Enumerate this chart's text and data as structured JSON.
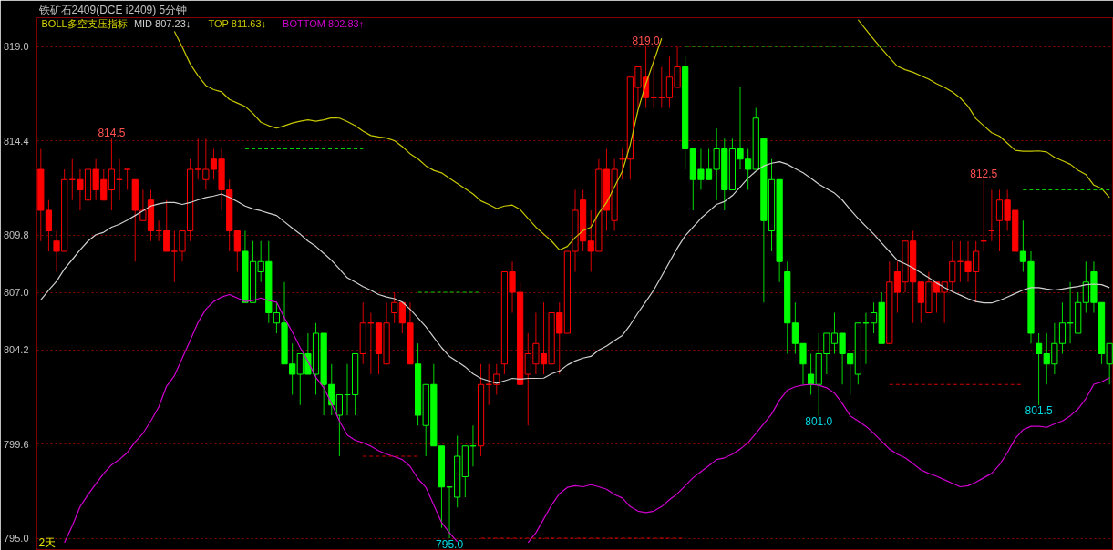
{
  "chart_data": {
    "type": "candlestick",
    "title": "铁矿石2409(DCE i2409)  5分钟",
    "legend_title": "BOLL多空支压指标",
    "legend": "top left",
    "grid": "y",
    "tick_labels": "y",
    "ylim": [
      794.4,
      820.4
    ],
    "yticks": [
      {
        "value": 795,
        "label": "795.0"
      },
      799.6,
      804.2,
      {
        "value": 807,
        "label": "807.0"
      },
      809.8,
      814.4,
      {
        "value": 819,
        "label": "819.0"
      }
    ],
    "categories": [
      null,
      null,
      null,
      null,
      null,
      null,
      null,
      null,
      null,
      null,
      null,
      null,
      null,
      null,
      null,
      null,
      null,
      null,
      null,
      null,
      null,
      null,
      null,
      null,
      null,
      null,
      null,
      null,
      null,
      null,
      null,
      null,
      null,
      null,
      null,
      null,
      null,
      null,
      null,
      null,
      null,
      null,
      null,
      null,
      null,
      null,
      null,
      null,
      null,
      null,
      null,
      null,
      null,
      null,
      null,
      null,
      null,
      null,
      null,
      null,
      null,
      null,
      null,
      null,
      null,
      null,
      null,
      null,
      null,
      null,
      null,
      null,
      null,
      null,
      null,
      null,
      null,
      null,
      null,
      null,
      null,
      null,
      null,
      null,
      null,
      null,
      null,
      null,
      null,
      null,
      null,
      null,
      null,
      null,
      null,
      null,
      null,
      null,
      null,
      null,
      null,
      null,
      null,
      null,
      null,
      null,
      null,
      null,
      null,
      null,
      null,
      null,
      null,
      null,
      null,
      null,
      null,
      null,
      null,
      null,
      null,
      null,
      null,
      null,
      null,
      null,
      null,
      null,
      null,
      null,
      null,
      null,
      null,
      null,
      null,
      null,
      null
    ],
    "ohlc": [
      [
        813,
        814,
        809.5,
        811
      ],
      [
        811,
        811.5,
        809,
        810
      ],
      [
        809.5,
        810,
        808,
        809
      ],
      [
        809,
        813,
        809,
        812.5
      ],
      [
        812.5,
        813.5,
        811.5,
        812.5
      ],
      [
        812.5,
        813,
        811,
        812
      ],
      [
        811.5,
        813,
        811.5,
        813
      ],
      [
        813,
        813.5,
        811.5,
        812
      ],
      [
        812.5,
        813,
        811.5,
        811.5
      ],
      [
        812,
        814.5,
        811,
        813
      ],
      [
        812.5,
        813.5,
        811.5,
        812.5
      ],
      [
        813,
        813,
        812,
        813
      ],
      [
        812.5,
        812.5,
        808.5,
        811
      ],
      [
        810.5,
        812,
        810.5,
        811
      ],
      [
        811.5,
        812,
        809.5,
        810
      ],
      [
        810,
        810.5,
        809.5,
        810
      ],
      [
        810,
        811.5,
        809,
        809
      ],
      [
        809,
        810,
        807.5,
        809
      ],
      [
        809,
        810,
        808.5,
        810
      ],
      [
        810,
        813.5,
        809.5,
        813
      ],
      [
        813,
        814.5,
        812.5,
        813
      ],
      [
        812.5,
        814.5,
        812,
        813
      ],
      [
        813.5,
        814,
        812.5,
        813
      ],
      [
        813.5,
        814,
        811,
        812
      ],
      [
        812,
        812.5,
        809,
        810
      ],
      [
        810,
        810,
        808,
        809
      ],
      [
        809,
        810,
        806.5,
        806.5
      ],
      [
        806.5,
        809.5,
        806.5,
        808.5
      ],
      [
        808,
        809.5,
        807.5,
        808.5
      ],
      [
        808.5,
        809.5,
        805.5,
        806
      ],
      [
        805.5,
        806.5,
        805,
        806
      ],
      [
        805.5,
        807.5,
        803.5,
        803.5
      ],
      [
        803.5,
        804.5,
        802,
        803
      ],
      [
        803,
        804,
        801.5,
        804
      ],
      [
        804,
        805,
        803,
        803
      ],
      [
        803,
        805.5,
        802,
        805
      ],
      [
        805,
        805,
        801,
        802.5
      ],
      [
        802.5,
        803.5,
        801,
        801.5
      ],
      [
        801,
        802,
        799,
        802
      ],
      [
        802,
        803.5,
        801,
        802
      ],
      [
        802,
        804,
        801,
        804
      ],
      [
        804,
        806.5,
        803.5,
        805.5
      ],
      [
        805.5,
        806,
        803,
        805.5
      ],
      [
        805.5,
        805.5,
        803,
        804
      ],
      [
        803.5,
        806.5,
        803.5,
        805.5
      ],
      [
        806,
        807,
        805.5,
        806.5
      ],
      [
        806.5,
        806.5,
        805,
        805.5
      ],
      [
        805.5,
        806.5,
        803.5,
        803.5
      ],
      [
        803.5,
        804.5,
        800.5,
        801
      ],
      [
        800.5,
        802.5,
        799,
        802.5
      ],
      [
        802.5,
        803.5,
        799.5,
        799.5
      ],
      [
        799.5,
        799.5,
        795.5,
        797.5
      ],
      [
        797.5,
        797.5,
        795,
        797.5
      ],
      [
        797,
        800,
        796.5,
        799
      ],
      [
        798,
        799.5,
        797,
        799.5
      ],
      [
        799.5,
        800.5,
        798.5,
        799.5
      ],
      [
        799.5,
        803.5,
        799,
        802.5
      ],
      [
        802.5,
        803.5,
        801.5,
        802.5
      ],
      [
        802.5,
        803.5,
        802,
        803
      ],
      [
        803.5,
        808,
        803,
        808
      ],
      [
        808,
        808.5,
        806,
        807
      ],
      [
        807,
        807.5,
        802.5,
        802.5
      ],
      [
        803,
        805,
        800.5,
        804
      ],
      [
        803.5,
        806,
        803,
        804.5
      ],
      [
        804,
        806.5,
        803,
        803.5
      ],
      [
        803.5,
        806,
        803.5,
        806
      ],
      [
        806,
        806.5,
        803,
        805
      ],
      [
        805,
        809,
        805,
        809
      ],
      [
        809,
        812,
        808,
        811
      ],
      [
        811.5,
        812,
        809,
        809.5
      ],
      [
        809.5,
        811,
        808,
        809
      ],
      [
        809,
        813.5,
        809,
        813
      ],
      [
        813,
        814,
        810,
        811
      ],
      [
        810.5,
        813.5,
        810,
        813
      ],
      [
        813.5,
        814,
        812.5,
        813.5
      ],
      [
        813.5,
        817.5,
        812.5,
        817.5
      ],
      [
        817,
        818,
        816,
        818
      ],
      [
        817.5,
        819,
        816,
        816.5
      ],
      [
        816.5,
        818.5,
        816,
        816.5
      ],
      [
        816.5,
        818,
        816,
        816.5
      ],
      [
        816.5,
        818.5,
        816,
        817.5
      ],
      [
        817,
        819,
        817,
        818
      ],
      [
        818,
        818.5,
        813,
        814
      ],
      [
        814,
        814,
        811,
        812.5
      ],
      [
        813,
        814,
        812,
        812.5
      ],
      [
        813,
        814,
        812.5,
        812.5
      ],
      [
        813,
        815,
        811.5,
        814
      ],
      [
        814,
        814.5,
        811,
        812
      ],
      [
        812,
        814.5,
        812,
        814
      ],
      [
        814,
        817,
        813,
        813.5
      ],
      [
        813.5,
        814,
        812,
        813
      ],
      [
        813,
        816,
        813,
        815.5
      ],
      [
        814.5,
        814.5,
        806.5,
        810.5
      ],
      [
        810,
        813.5,
        809,
        812.5
      ],
      [
        812.5,
        812.5,
        807.5,
        808.5
      ],
      [
        808,
        808.5,
        804,
        805.5
      ],
      [
        805.5,
        806.5,
        804,
        804.5
      ],
      [
        804.5,
        804.5,
        802.5,
        803.5
      ],
      [
        803,
        804,
        802,
        802.5
      ],
      [
        802.5,
        805,
        801,
        804
      ],
      [
        804,
        805,
        803,
        805
      ],
      [
        804.5,
        806,
        804,
        805
      ],
      [
        805,
        805,
        802.5,
        804
      ],
      [
        804,
        804,
        802,
        803.5
      ],
      [
        803,
        805.5,
        802.5,
        805.5
      ],
      [
        805.5,
        806,
        803.5,
        805.5
      ],
      [
        805.5,
        806.5,
        805,
        806
      ],
      [
        806.5,
        807,
        804.5,
        804.5
      ],
      [
        804.5,
        808.5,
        804.5,
        807.5
      ],
      [
        808,
        808.5,
        806,
        807
      ],
      [
        807.5,
        809.5,
        807,
        809.5
      ],
      [
        809.5,
        810,
        805.5,
        807.5
      ],
      [
        807.5,
        807.5,
        805.5,
        806.5
      ],
      [
        806,
        808,
        806,
        807.5
      ],
      [
        807.5,
        807.5,
        806,
        807
      ],
      [
        807,
        807.5,
        805.5,
        807.5
      ],
      [
        807.5,
        809.5,
        807,
        808.5
      ],
      [
        808.5,
        809.5,
        807.5,
        808.5
      ],
      [
        808.5,
        809.5,
        807.5,
        808
      ],
      [
        808,
        809.5,
        806.5,
        809
      ],
      [
        809.5,
        812.5,
        809,
        809.5
      ],
      [
        810,
        812,
        809.5,
        810
      ],
      [
        810.5,
        812,
        809,
        811.5
      ],
      [
        811.5,
        812,
        810,
        810.5
      ],
      [
        811,
        811,
        809,
        809
      ],
      [
        809,
        810.5,
        808,
        808.5
      ],
      [
        808.5,
        809,
        804.5,
        805
      ],
      [
        804.5,
        805,
        801.5,
        804
      ],
      [
        804,
        805,
        802.5,
        803.5
      ],
      [
        803.5,
        805.5,
        803,
        804.5
      ],
      [
        804.5,
        806.5,
        804,
        805.5
      ],
      [
        805.5,
        807.5,
        804.5,
        805.5
      ],
      [
        805,
        807,
        805,
        806.5
      ],
      [
        806.5,
        808.5,
        806,
        807.5
      ],
      [
        808,
        808.5,
        806,
        806.5
      ],
      [
        806.5,
        806.5,
        803.5,
        804
      ],
      [
        803.5,
        804.5,
        802.5,
        804.5
      ]
    ],
    "colors": [
      "#ff0000",
      "#ff0000",
      "#ff0000",
      "#ff0000",
      "#ff0000",
      "#ff0000",
      "#ff0000",
      "#ff0000",
      "#ff0000",
      "#ff0000",
      "#ff0000",
      "#ff0000",
      "#ff0000",
      "#ff0000",
      "#ff0000",
      "#ff0000",
      "#ff0000",
      "#ff0000",
      "#ff0000",
      "#ff0000",
      "#ff0000",
      "#ff0000",
      "#ff0000",
      "#ff0000",
      "#ff0000",
      "#ff0000",
      "#00ff00",
      "#00ff00",
      "#00ff00",
      "#00ff00",
      "#00ff00",
      "#00ff00",
      "#00ff00",
      "#00ff00",
      "#00ff00",
      "#00ff00",
      "#00ff00",
      "#00ff00",
      "#00ff00",
      "#00ff00",
      "#00ff00",
      "#ff0000",
      "#ff0000",
      "#ff0000",
      "#ff0000",
      "#ff0000",
      "#ff0000",
      "#ff0000",
      "#00ff00",
      "#00ff00",
      "#00ff00",
      "#00ff00",
      "#00ff00",
      "#00ff00",
      "#00ff00",
      "#00ff00",
      "#ff0000",
      "#ff0000",
      "#ff0000",
      "#ff0000",
      "#ff0000",
      "#ff0000",
      "#ff0000",
      "#ff0000",
      "#ff0000",
      "#ff0000",
      "#ff0000",
      "#ff0000",
      "#ff0000",
      "#ff0000",
      "#ff0000",
      "#ff0000",
      "#ff0000",
      "#ff0000",
      "#ff0000",
      "#ff0000",
      "#ff0000",
      "#ff0000",
      "#ff0000",
      "#ff0000",
      "#ff0000",
      "#ff0000",
      "#00ff00",
      "#00ff00",
      "#00ff00",
      "#00ff00",
      "#00ff00",
      "#00ff00",
      "#00ff00",
      "#00ff00",
      "#00ff00",
      "#00ff00",
      "#00ff00",
      "#00ff00",
      "#00ff00",
      "#00ff00",
      "#00ff00",
      "#00ff00",
      "#00ff00",
      "#00ff00",
      "#00ff00",
      "#00ff00",
      "#00ff00",
      "#00ff00",
      "#00ff00",
      "#00ff00",
      "#00ff00",
      "#00ff00",
      "#ff0000",
      "#ff0000",
      "#ff0000",
      "#ff0000",
      "#ff0000",
      "#ff0000",
      "#ff0000",
      "#ff0000",
      "#ff0000",
      "#ff0000",
      "#ff0000",
      "#ff0000",
      "#ff0000",
      "#ff0000",
      "#ff0000",
      "#ff0000",
      "#ff0000",
      "#00ff00",
      "#00ff00",
      "#00ff00",
      "#00ff00",
      "#00ff00",
      "#00ff00",
      "#00ff00",
      "#00ff00",
      "#00ff00",
      "#00ff00",
      "#00ff00",
      "#00ff00"
    ],
    "series": [
      {
        "type": "line",
        "name": "MID 807.23↓",
        "color": "#d0d0d0",
        "values": [
          806.63,
          807.11,
          807.54,
          808.14,
          808.6,
          809.07,
          809.5,
          809.81,
          809.93,
          810.18,
          810.32,
          810.52,
          810.75,
          810.98,
          811.21,
          811.32,
          811.38,
          811.38,
          811.29,
          811.38,
          811.51,
          811.63,
          811.7,
          811.8,
          811.63,
          811.43,
          811.21,
          811.07,
          810.98,
          810.86,
          810.75,
          810.44,
          810.13,
          809.84,
          809.5,
          809.24,
          808.9,
          808.56,
          808.14,
          807.71,
          807.5,
          807.28,
          807.1,
          806.89,
          806.77,
          806.69,
          806.52,
          806.17,
          805.75,
          805.32,
          804.81,
          804.3,
          803.87,
          803.62,
          803.36,
          803.02,
          802.8,
          802.68,
          802.56,
          802.68,
          802.8,
          802.76,
          802.8,
          802.8,
          802.81,
          803.02,
          803.16,
          803.45,
          803.65,
          803.79,
          803.87,
          804.18,
          804.38,
          804.64,
          804.89,
          805.41,
          806.0,
          806.55,
          807.11,
          807.79,
          808.48,
          809.16,
          809.76,
          810.18,
          810.61,
          810.95,
          811.29,
          811.43,
          811.72,
          812.14,
          812.57,
          812.91,
          813.17,
          813.3,
          813.37,
          813.25,
          813.03,
          812.83,
          812.57,
          812.28,
          812.06,
          811.84,
          811.5,
          811.04,
          810.61,
          810.22,
          809.84,
          809.41,
          808.99,
          808.56,
          808.39,
          808.19,
          807.96,
          807.71,
          807.45,
          807.23,
          807.03,
          806.86,
          806.69,
          806.55,
          806.48,
          806.48,
          806.6,
          806.77,
          806.94,
          807.11,
          807.23,
          807.23,
          807.16,
          807.11,
          807.16,
          807.23,
          807.28,
          807.37,
          807.4,
          807.37,
          807.23
        ]
      },
      {
        "type": "line",
        "name": "TOP 811.63↓",
        "color": "#c8c800",
        "values": [
          null,
          null,
          null,
          null,
          null,
          null,
          null,
          null,
          null,
          null,
          null,
          null,
          null,
          null,
          null,
          null,
          null,
          819.73,
          818.97,
          818.15,
          817.57,
          817.09,
          816.89,
          816.78,
          816.41,
          816.24,
          816.07,
          815.73,
          815.3,
          815.13,
          815.01,
          815.13,
          815.26,
          815.35,
          815.42,
          815.35,
          815.42,
          815.52,
          815.5,
          815.33,
          815.13,
          814.87,
          814.65,
          814.58,
          814.53,
          814.4,
          814.11,
          813.76,
          813.51,
          813.17,
          812.95,
          812.83,
          812.57,
          812.31,
          812.06,
          811.8,
          811.46,
          811.29,
          811.09,
          811.21,
          811.26,
          811.04,
          810.61,
          810.18,
          809.84,
          809.5,
          809.07,
          809.24,
          809.67,
          810.01,
          810.18,
          810.86,
          811.38,
          812.14,
          812.91,
          814.19,
          815.9,
          817.18,
          818.28,
          819.39,
          null,
          null,
          null,
          null,
          null,
          null,
          null,
          null,
          null,
          null,
          null,
          null,
          null,
          null,
          null,
          null,
          null,
          null,
          null,
          null,
          null,
          null,
          null,
          null,
          820.3,
          819.82,
          819.34,
          818.88,
          818.45,
          818.03,
          817.86,
          817.74,
          817.57,
          817.4,
          817.18,
          817.0,
          816.78,
          816.49,
          816.07,
          815.47,
          815.13,
          814.79,
          814.62,
          814.28,
          813.93,
          813.88,
          813.88,
          813.9,
          813.85,
          813.59,
          813.42,
          813.25,
          812.96,
          812.74,
          812.23,
          812.06,
          811.63
        ]
      },
      {
        "type": "line",
        "name": "BOTTOM 802.83↑",
        "color": "#d000d0",
        "values": [
          null,
          null,
          null,
          794.78,
          795.6,
          796.54,
          797.13,
          797.65,
          798.16,
          798.58,
          798.84,
          799.18,
          799.69,
          800.12,
          800.72,
          801.4,
          802.42,
          802.93,
          803.79,
          804.64,
          805.53,
          806.17,
          806.55,
          806.77,
          806.89,
          806.72,
          806.55,
          806.6,
          806.72,
          806.6,
          806.52,
          805.75,
          805.07,
          804.3,
          803.62,
          802.85,
          802.34,
          801.57,
          800.72,
          800.03,
          799.78,
          799.66,
          799.49,
          799.27,
          799.1,
          798.98,
          798.84,
          798.5,
          797.9,
          797.48,
          796.62,
          795.77,
          795.26,
          794.83,
          null,
          null,
          null,
          null,
          null,
          null,
          null,
          null,
          794.78,
          795.26,
          795.94,
          796.62,
          797.17,
          797.48,
          797.56,
          797.51,
          797.61,
          797.51,
          797.39,
          797.13,
          796.96,
          796.54,
          796.32,
          796.25,
          796.32,
          796.54,
          796.88,
          797.17,
          797.56,
          797.95,
          798.24,
          798.53,
          798.84,
          798.92,
          799.1,
          799.35,
          799.66,
          800.12,
          800.58,
          801.06,
          801.74,
          802.22,
          802.39,
          802.47,
          802.51,
          802.46,
          802.34,
          802.08,
          801.57,
          800.97,
          800.72,
          800.46,
          800.12,
          799.73,
          799.35,
          799.1,
          798.92,
          798.64,
          798.33,
          798.16,
          798.02,
          797.85,
          797.68,
          797.51,
          797.56,
          797.73,
          797.95,
          798.16,
          798.58,
          799.18,
          799.86,
          800.29,
          800.46,
          800.46,
          800.41,
          800.58,
          800.72,
          800.97,
          801.31,
          801.82,
          802.51,
          802.63,
          802.83
        ]
      },
      {
        "type": "line",
        "color": "#00d000",
        "line_style": "dashed",
        "values": [
          null,
          null,
          null,
          null,
          null,
          null,
          null,
          null,
          null,
          null,
          null,
          null,
          null,
          null,
          null,
          null,
          null,
          null,
          null,
          null,
          null,
          null,
          null,
          null,
          null,
          null,
          814,
          814,
          814,
          814,
          814,
          814,
          814,
          814,
          814,
          814,
          814,
          814,
          814,
          814,
          814,
          814,
          null,
          null,
          null,
          null,
          null,
          null,
          807,
          807,
          807,
          807,
          807,
          807,
          807,
          807,
          807,
          null,
          null,
          null,
          null,
          null,
          null,
          null,
          null,
          null,
          null,
          null,
          null,
          null,
          null,
          null,
          null,
          null,
          null,
          null,
          null,
          null,
          null,
          null,
          null,
          null,
          819,
          819,
          819,
          819,
          819,
          819,
          819,
          819,
          819,
          819,
          819,
          819,
          819,
          819,
          819,
          819,
          819,
          819,
          819,
          819,
          819,
          819,
          819,
          819,
          819,
          819,
          819,
          null,
          null,
          null,
          null,
          null,
          null,
          null,
          null,
          null,
          null,
          null,
          null,
          null,
          null,
          null,
          null,
          812,
          812,
          812,
          812,
          812,
          812,
          812,
          812,
          812,
          812,
          812,
          812
        ]
      },
      {
        "type": "line",
        "color": "#d00000",
        "line_style": "dashed",
        "values": [
          null,
          null,
          null,
          null,
          null,
          null,
          null,
          null,
          null,
          null,
          null,
          null,
          null,
          null,
          null,
          null,
          null,
          null,
          null,
          null,
          null,
          null,
          null,
          null,
          null,
          null,
          null,
          null,
          null,
          null,
          null,
          null,
          null,
          null,
          null,
          null,
          null,
          null,
          null,
          null,
          null,
          799,
          799,
          799,
          799,
          799,
          799,
          799,
          799,
          null,
          null,
          null,
          null,
          null,
          null,
          null,
          795,
          795,
          795,
          795,
          795,
          795,
          795,
          795,
          795,
          795,
          795,
          795,
          795,
          795,
          795,
          795,
          795,
          795,
          795,
          795,
          795,
          795,
          795,
          795,
          795,
          795,
          795,
          null,
          null,
          null,
          null,
          null,
          null,
          null,
          null,
          null,
          null,
          null,
          null,
          null,
          null,
          null,
          null,
          null,
          null,
          null,
          null,
          null,
          null,
          null,
          null,
          null,
          802.5,
          802.5,
          802.5,
          802.5,
          802.5,
          802.5,
          802.5,
          802.5,
          802.5,
          802.5,
          802.5,
          802.5,
          802.5,
          802.5,
          802.5,
          802.5,
          802.5,
          802.5,
          null,
          null,
          null,
          null,
          null,
          null,
          null,
          null,
          null,
          null,
          null
        ]
      }
    ],
    "annotations": [
      {
        "text": "814.5",
        "y": 814.5
      },
      {
        "text": "819.0",
        "y": 819
      },
      {
        "text": "812.5",
        "y": 812.5
      },
      {
        "text": "795.0",
        "y": 795
      },
      {
        "text": "801.0",
        "y": 801
      },
      {
        "text": "801.5",
        "y": 801.5
      },
      "2天"
    ]
  }
}
